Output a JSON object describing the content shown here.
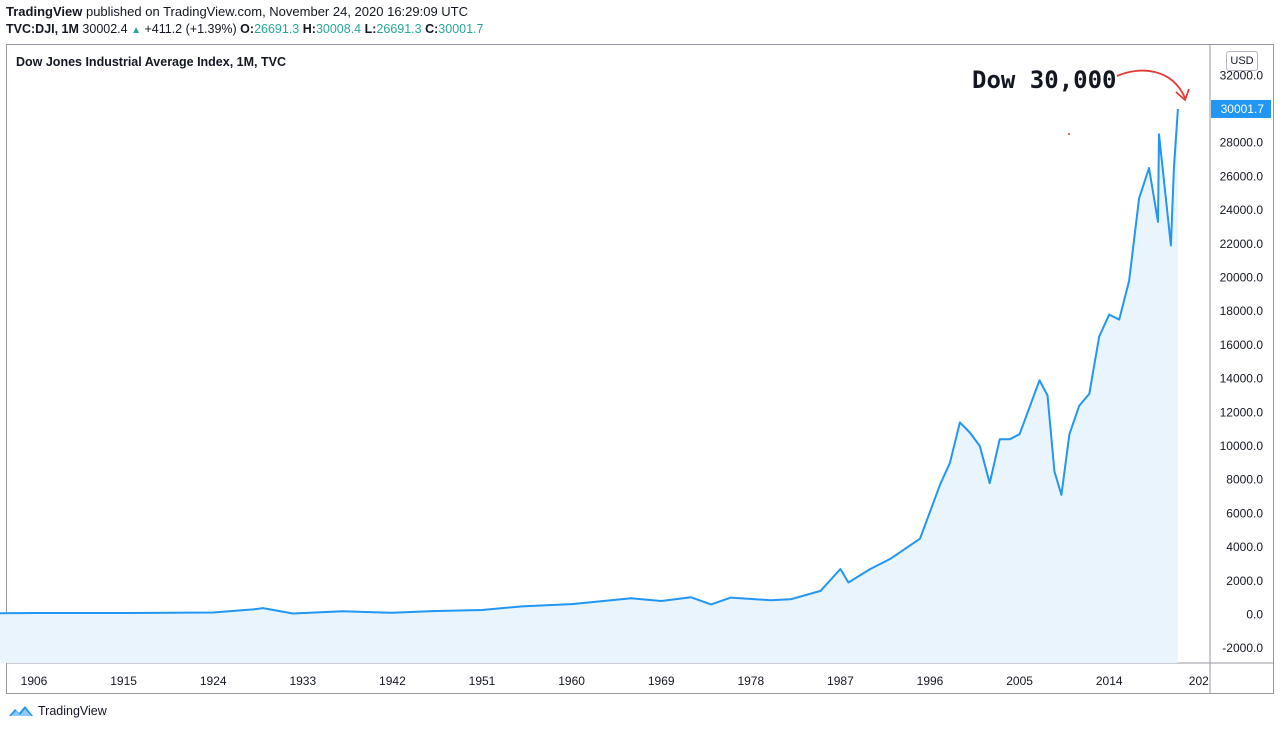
{
  "header": {
    "brand": "TradingView",
    "published": "published on TradingView.com, November 24, 2020 16:29:09 UTC",
    "symbol": "TVC:DJI, 1M",
    "last": "30002.4",
    "change": "+411.2 (+1.39%)",
    "o_label": "O:",
    "o_value": "26691.3",
    "h_label": "H:",
    "h_value": "30008.4",
    "l_label": "L:",
    "l_value": "26691.3",
    "c_label": "C:",
    "c_value": "30001.7"
  },
  "currency": "USD",
  "annotation": "Dow 30,000",
  "footer": {
    "brand": "TradingView"
  },
  "colors": {
    "line": "#2196f3",
    "fill": "#eaf4fd",
    "up": "#26a69a",
    "annotation_arrow": "#e53935"
  },
  "chart_data": {
    "type": "area",
    "title": "Dow Jones Industrial Average Index, 1M, TVC",
    "xlabel": "",
    "ylabel": "",
    "grid": false,
    "x_ticks": [
      "1906",
      "1915",
      "1924",
      "1933",
      "1942",
      "1951",
      "1960",
      "1969",
      "1978",
      "1987",
      "1996",
      "2005",
      "2014",
      "202"
    ],
    "y_ticks": [
      "32000.0",
      "28000.0",
      "26000.0",
      "24000.0",
      "22000.0",
      "20000.0",
      "18000.0",
      "16000.0",
      "14000.0",
      "12000.0",
      "10000.0",
      "8000.0",
      "6000.0",
      "4000.0",
      "2000.0",
      "0.0",
      "-2000.0"
    ],
    "ylim": [
      -2000,
      32000
    ],
    "xlim": [
      1900,
      2023
    ],
    "last_value_label": "30001.7",
    "series": [
      {
        "x": [
          1900,
          1906,
          1915,
          1924,
          1928,
          1929,
          1932,
          1937,
          1942,
          1946,
          1951,
          1955,
          1960,
          1966,
          1969,
          1972,
          1974,
          1976,
          1980,
          1982,
          1985,
          1987,
          1987.8,
          1990,
          1992,
          1995,
          1997,
          1998,
          1999,
          2000,
          2001,
          2002,
          2003,
          2004,
          2005,
          2007,
          2007.8,
          2008.5,
          2009.2,
          2010,
          2011,
          2012,
          2013,
          2014,
          2015,
          2016,
          2017,
          2018,
          2018.9,
          2019,
          2020.2,
          2020.5,
          2020.9
        ],
        "values": [
          66,
          90,
          90,
          120,
          300,
          380,
          60,
          190,
          100,
          200,
          270,
          480,
          620,
          960,
          800,
          1020,
          600,
          1000,
          850,
          900,
          1400,
          2700,
          1900,
          2700,
          3300,
          4500,
          7700,
          9000,
          11400,
          10800,
          10000,
          7800,
          10400,
          10400,
          10700,
          13900,
          13000,
          8500,
          7100,
          10700,
          12400,
          13100,
          16500,
          17800,
          17500,
          19800,
          24700,
          26500,
          23300,
          28500,
          21900,
          26500,
          30001.7
        ]
      }
    ]
  }
}
